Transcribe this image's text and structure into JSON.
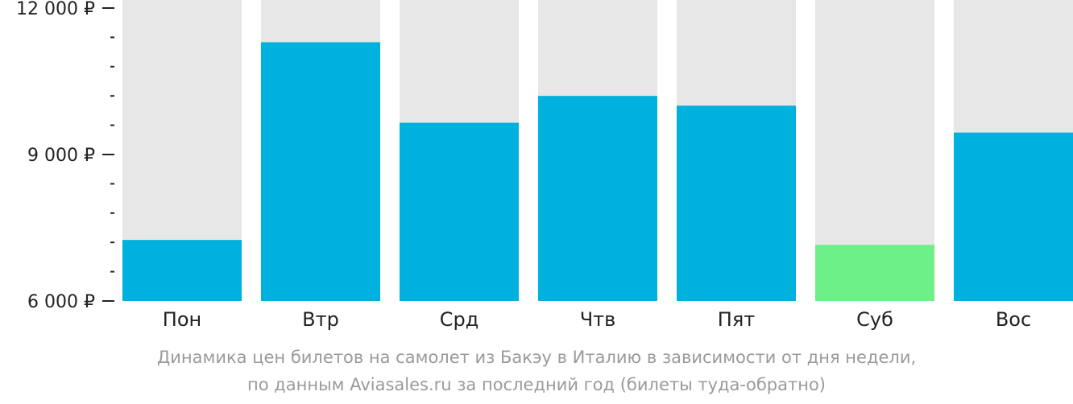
{
  "chart_data": {
    "type": "bar",
    "categories": [
      "Пон",
      "Втр",
      "Срд",
      "Чтв",
      "Пят",
      "Суб",
      "Вос"
    ],
    "values": [
      7250,
      11300,
      9650,
      10200,
      10000,
      7150,
      9450
    ],
    "ylim": [
      6000,
      12000
    ],
    "yticks": [
      {
        "value": 12000,
        "label": "12 000 ₽"
      },
      {
        "value": 9000,
        "label": "9 000 ₽"
      },
      {
        "value": 6000,
        "label": "6 000 ₽"
      }
    ],
    "minor_tick_step": 600,
    "highlight_index": 5,
    "colors": {
      "bar": "#00b0dd",
      "highlight": "#6cf087",
      "background_bar": "#e7e7e7"
    }
  },
  "caption": {
    "line1": "Динамика цен билетов на самолет из Бакэу в Италию в зависимости от дня недели,",
    "line2": "по данным Aviasales.ru за последний год (билеты туда-обратно)"
  }
}
